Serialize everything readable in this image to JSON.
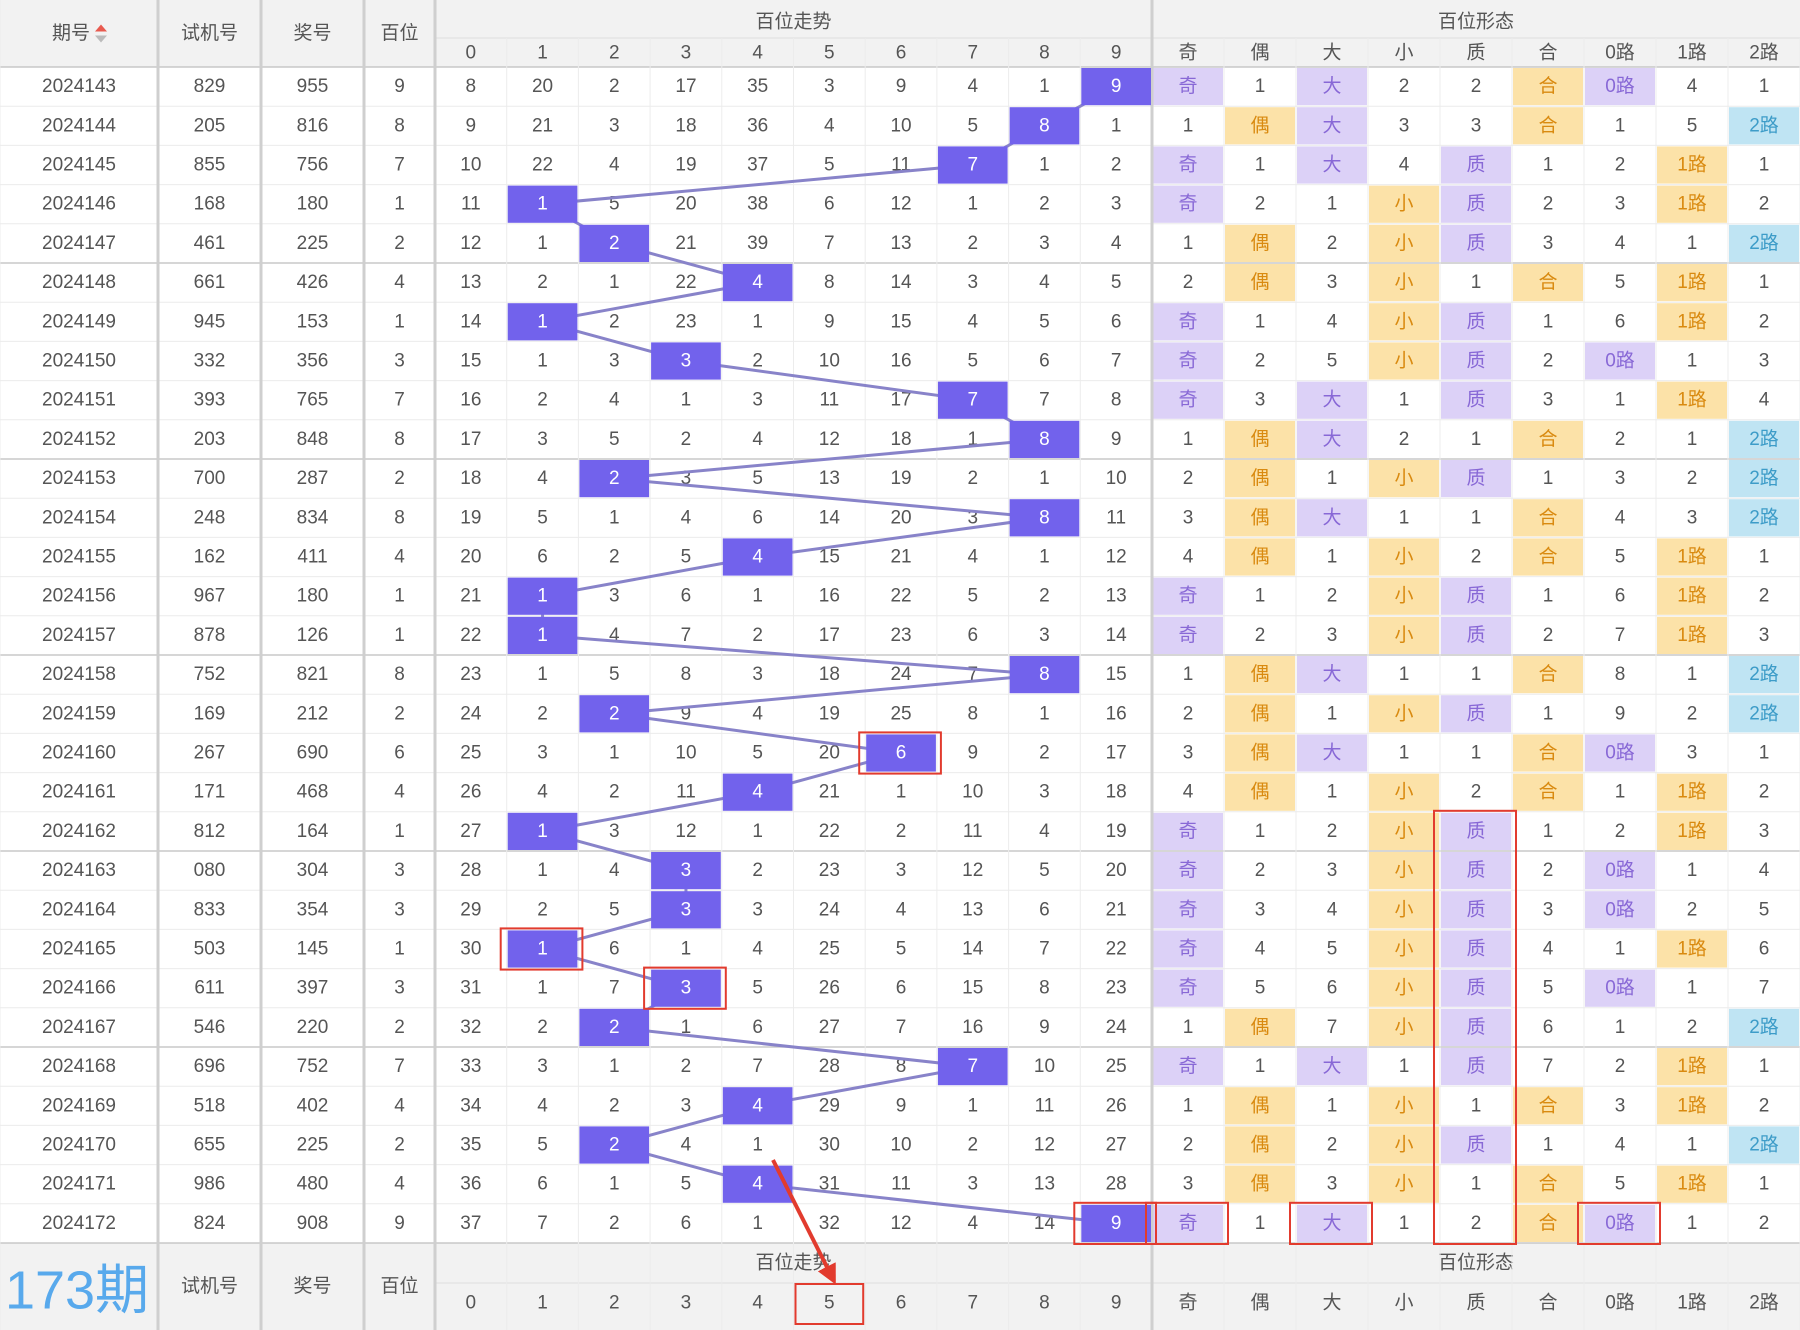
{
  "header": {
    "period": "期号",
    "trial": "试机号",
    "prize": "奖号",
    "hundreds": "百位",
    "trend": "百位走势",
    "form": "百位形态",
    "trend_cols": [
      "0",
      "1",
      "2",
      "3",
      "4",
      "5",
      "6",
      "7",
      "8",
      "9"
    ],
    "form_cols": [
      "奇",
      "偶",
      "大",
      "小",
      "质",
      "合",
      "0路",
      "1路",
      "2路"
    ]
  },
  "rows": [
    [
      "2024143",
      "829",
      "955",
      "9",
      "8",
      "20",
      "2",
      "17",
      "35",
      "3",
      "9",
      "4",
      "1",
      "9",
      "奇",
      "1",
      "大",
      "2",
      "2",
      "合",
      "0路",
      "4",
      "1"
    ],
    [
      "2024144",
      "205",
      "816",
      "8",
      "9",
      "21",
      "3",
      "18",
      "36",
      "4",
      "10",
      "5",
      "8",
      "1",
      "1",
      "偶",
      "大",
      "3",
      "3",
      "合",
      "1",
      "5",
      "2路"
    ],
    [
      "2024145",
      "855",
      "756",
      "7",
      "10",
      "22",
      "4",
      "19",
      "37",
      "5",
      "11",
      "7",
      "1",
      "2",
      "奇",
      "1",
      "大",
      "4",
      "质",
      "1",
      "2",
      "1路",
      "1"
    ],
    [
      "2024146",
      "168",
      "180",
      "1",
      "11",
      "1",
      "5",
      "20",
      "38",
      "6",
      "12",
      "1",
      "2",
      "3",
      "奇",
      "2",
      "1",
      "小",
      "质",
      "2",
      "3",
      "1路",
      "2"
    ],
    [
      "2024147",
      "461",
      "225",
      "2",
      "12",
      "1",
      "2",
      "21",
      "39",
      "7",
      "13",
      "2",
      "3",
      "4",
      "1",
      "偶",
      "2",
      "小",
      "质",
      "3",
      "4",
      "1",
      "2路"
    ],
    [
      "2024148",
      "661",
      "426",
      "4",
      "13",
      "2",
      "1",
      "22",
      "4",
      "8",
      "14",
      "3",
      "4",
      "5",
      "2",
      "偶",
      "3",
      "小",
      "1",
      "合",
      "5",
      "1路",
      "1"
    ],
    [
      "2024149",
      "945",
      "153",
      "1",
      "14",
      "1",
      "2",
      "23",
      "1",
      "9",
      "15",
      "4",
      "5",
      "6",
      "奇",
      "1",
      "4",
      "小",
      "质",
      "1",
      "6",
      "1路",
      "2"
    ],
    [
      "2024150",
      "332",
      "356",
      "3",
      "15",
      "1",
      "3",
      "3",
      "2",
      "10",
      "16",
      "5",
      "6",
      "7",
      "奇",
      "2",
      "5",
      "小",
      "质",
      "2",
      "0路",
      "1",
      "3"
    ],
    [
      "2024151",
      "393",
      "765",
      "7",
      "16",
      "2",
      "4",
      "1",
      "3",
      "11",
      "17",
      "7",
      "7",
      "8",
      "奇",
      "3",
      "大",
      "1",
      "质",
      "3",
      "1",
      "1路",
      "4"
    ],
    [
      "2024152",
      "203",
      "848",
      "8",
      "17",
      "3",
      "5",
      "2",
      "4",
      "12",
      "18",
      "1",
      "8",
      "9",
      "1",
      "偶",
      "大",
      "2",
      "1",
      "合",
      "2",
      "1",
      "2路"
    ],
    [
      "2024153",
      "700",
      "287",
      "2",
      "18",
      "4",
      "2",
      "3",
      "5",
      "13",
      "19",
      "2",
      "1",
      "10",
      "2",
      "偶",
      "1",
      "小",
      "质",
      "1",
      "3",
      "2",
      "2路"
    ],
    [
      "2024154",
      "248",
      "834",
      "8",
      "19",
      "5",
      "1",
      "4",
      "6",
      "14",
      "20",
      "3",
      "8",
      "11",
      "3",
      "偶",
      "大",
      "1",
      "1",
      "合",
      "4",
      "3",
      "2路"
    ],
    [
      "2024155",
      "162",
      "411",
      "4",
      "20",
      "6",
      "2",
      "5",
      "4",
      "15",
      "21",
      "4",
      "1",
      "12",
      "4",
      "偶",
      "1",
      "小",
      "2",
      "合",
      "5",
      "1路",
      "1"
    ],
    [
      "2024156",
      "967",
      "180",
      "1",
      "21",
      "1",
      "3",
      "6",
      "1",
      "16",
      "22",
      "5",
      "2",
      "13",
      "奇",
      "1",
      "2",
      "小",
      "质",
      "1",
      "6",
      "1路",
      "2"
    ],
    [
      "2024157",
      "878",
      "126",
      "1",
      "22",
      "1",
      "4",
      "7",
      "2",
      "17",
      "23",
      "6",
      "3",
      "14",
      "奇",
      "2",
      "3",
      "小",
      "质",
      "2",
      "7",
      "1路",
      "3"
    ],
    [
      "2024158",
      "752",
      "821",
      "8",
      "23",
      "1",
      "5",
      "8",
      "3",
      "18",
      "24",
      "7",
      "8",
      "15",
      "1",
      "偶",
      "大",
      "1",
      "1",
      "合",
      "8",
      "1",
      "2路"
    ],
    [
      "2024159",
      "169",
      "212",
      "2",
      "24",
      "2",
      "2",
      "9",
      "4",
      "19",
      "25",
      "8",
      "1",
      "16",
      "2",
      "偶",
      "1",
      "小",
      "质",
      "1",
      "9",
      "2",
      "2路"
    ],
    [
      "2024160",
      "267",
      "690",
      "6",
      "25",
      "3",
      "1",
      "10",
      "5",
      "20",
      "6",
      "9",
      "2",
      "17",
      "3",
      "偶",
      "大",
      "1",
      "1",
      "合",
      "0路",
      "3",
      "1"
    ],
    [
      "2024161",
      "171",
      "468",
      "4",
      "26",
      "4",
      "2",
      "11",
      "4",
      "21",
      "1",
      "10",
      "3",
      "18",
      "4",
      "偶",
      "1",
      "小",
      "2",
      "合",
      "1",
      "1路",
      "2"
    ],
    [
      "2024162",
      "812",
      "164",
      "1",
      "27",
      "1",
      "3",
      "12",
      "1",
      "22",
      "2",
      "11",
      "4",
      "19",
      "奇",
      "1",
      "2",
      "小",
      "质",
      "1",
      "2",
      "1路",
      "3"
    ],
    [
      "2024163",
      "080",
      "304",
      "3",
      "28",
      "1",
      "4",
      "3",
      "2",
      "23",
      "3",
      "12",
      "5",
      "20",
      "奇",
      "2",
      "3",
      "小",
      "质",
      "2",
      "0路",
      "1",
      "4"
    ],
    [
      "2024164",
      "833",
      "354",
      "3",
      "29",
      "2",
      "5",
      "3",
      "3",
      "24",
      "4",
      "13",
      "6",
      "21",
      "奇",
      "3",
      "4",
      "小",
      "质",
      "3",
      "0路",
      "2",
      "5"
    ],
    [
      "2024165",
      "503",
      "145",
      "1",
      "30",
      "1",
      "6",
      "1",
      "4",
      "25",
      "5",
      "14",
      "7",
      "22",
      "奇",
      "4",
      "5",
      "小",
      "质",
      "4",
      "1",
      "1路",
      "6"
    ],
    [
      "2024166",
      "611",
      "397",
      "3",
      "31",
      "1",
      "7",
      "3",
      "5",
      "26",
      "6",
      "15",
      "8",
      "23",
      "奇",
      "5",
      "6",
      "小",
      "质",
      "5",
      "0路",
      "1",
      "7"
    ],
    [
      "2024167",
      "546",
      "220",
      "2",
      "32",
      "2",
      "2",
      "1",
      "6",
      "27",
      "7",
      "16",
      "9",
      "24",
      "1",
      "偶",
      "7",
      "小",
      "质",
      "6",
      "1",
      "2",
      "2路"
    ],
    [
      "2024168",
      "696",
      "752",
      "7",
      "33",
      "3",
      "1",
      "2",
      "7",
      "28",
      "8",
      "7",
      "10",
      "25",
      "奇",
      "1",
      "大",
      "1",
      "质",
      "7",
      "2",
      "1路",
      "1"
    ],
    [
      "2024169",
      "518",
      "402",
      "4",
      "34",
      "4",
      "2",
      "3",
      "4",
      "29",
      "9",
      "1",
      "11",
      "26",
      "1",
      "偶",
      "1",
      "小",
      "1",
      "合",
      "3",
      "1路",
      "2"
    ],
    [
      "2024170",
      "655",
      "225",
      "2",
      "35",
      "5",
      "2",
      "4",
      "1",
      "30",
      "10",
      "2",
      "12",
      "27",
      "2",
      "偶",
      "2",
      "小",
      "质",
      "1",
      "4",
      "1",
      "2路"
    ],
    [
      "2024171",
      "986",
      "480",
      "4",
      "36",
      "6",
      "1",
      "5",
      "4",
      "31",
      "11",
      "3",
      "13",
      "28",
      "3",
      "偶",
      "3",
      "小",
      "1",
      "合",
      "5",
      "1路",
      "1"
    ],
    [
      "2024172",
      "824",
      "908",
      "9",
      "37",
      "7",
      "2",
      "6",
      "1",
      "32",
      "12",
      "4",
      "14",
      "9",
      "奇",
      "1",
      "大",
      "1",
      "2",
      "合",
      "0路",
      "1",
      "2"
    ]
  ],
  "footer": {
    "next": "173期",
    "trial": "试机号",
    "prize": "奖号",
    "hundreds": "百位",
    "trend": "百位走势",
    "form": "百位形态",
    "trend_cols": [
      "0",
      "1",
      "2",
      "3",
      "4",
      "5",
      "6",
      "7",
      "8",
      "9"
    ],
    "form_cols": [
      "奇",
      "偶",
      "大",
      "小",
      "质",
      "合",
      "0路",
      "1路",
      "2路"
    ]
  }
}
